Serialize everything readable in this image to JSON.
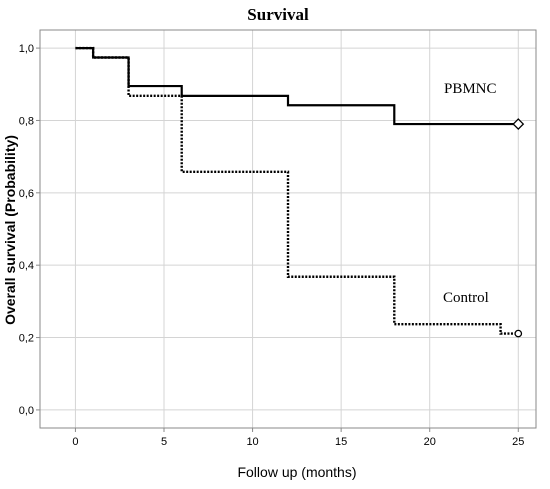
{
  "chart_data": {
    "type": "line",
    "step": true,
    "title": "Survival",
    "xlabel": "Follow up (months)",
    "ylabel": "Overall survival (Probability)",
    "xlim": [
      -2,
      26
    ],
    "ylim": [
      -0.05,
      1.05
    ],
    "xticks": [
      0,
      5,
      10,
      15,
      20,
      25
    ],
    "yticks": [
      0.0,
      0.2,
      0.4,
      0.6,
      0.8,
      1.0
    ],
    "ytick_labels": [
      "0,0",
      "0,2",
      "0,4",
      "0,6",
      "0,8",
      "1,0"
    ],
    "grid": true,
    "series": [
      {
        "name": "PBMNC",
        "style": "solid",
        "censor_marker": "diamond",
        "x": [
          0,
          1,
          3,
          6,
          12,
          18,
          25
        ],
        "y": [
          1.0,
          0.974,
          0.895,
          0.868,
          0.842,
          0.79,
          0.79
        ]
      },
      {
        "name": "Control",
        "style": "dotted",
        "censor_marker": "circle",
        "x": [
          0,
          1,
          3,
          6,
          12,
          18,
          24,
          25
        ],
        "y": [
          1.0,
          0.974,
          0.868,
          0.658,
          0.368,
          0.237,
          0.211,
          0.211
        ]
      }
    ]
  }
}
